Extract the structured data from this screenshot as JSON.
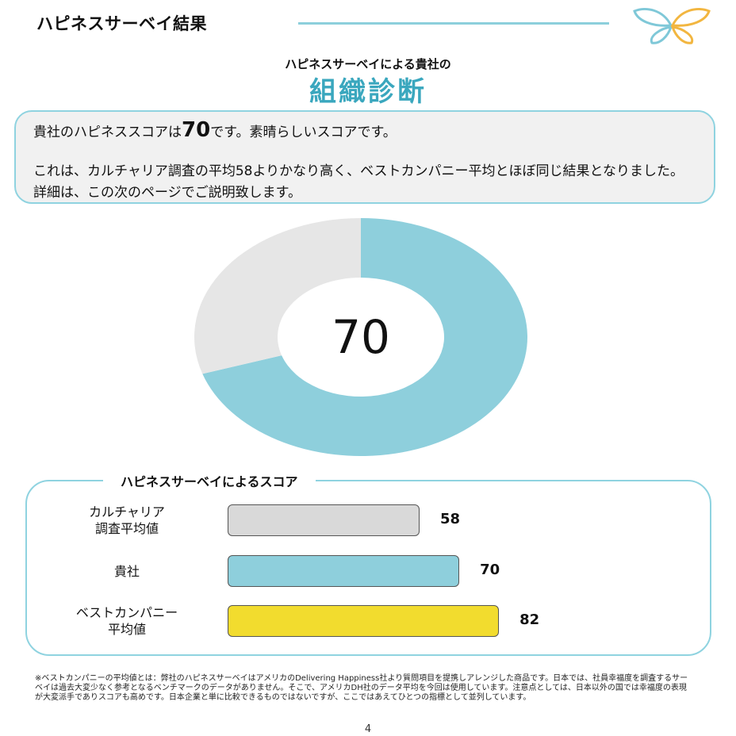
{
  "header": {
    "title": "ハピネスサーベイ結果"
  },
  "headings": {
    "sub": "ハピネスサーベイによる貴社の",
    "main": "組織診断"
  },
  "summary": {
    "line1_prefix": "貴社のハピネススコアは",
    "line1_score": "70",
    "line1_suffix": "です。素晴らしいスコアです。",
    "paragraph2": "これは、カルチャリア調査の平均58よりかなり高く、ベストカンパニー平均とほぼ同じ結果となりました。詳細は、この次のページでご説明致します。"
  },
  "chart_data": [
    {
      "type": "pie",
      "values": [
        70,
        30
      ],
      "colors": [
        "#8ecfdc",
        "#e6e6e6"
      ],
      "center_label": "70",
      "ylim": [
        0,
        100
      ]
    },
    {
      "type": "bar",
      "title": "ハピネスサーベイによるスコア",
      "categories": [
        [
          "カルチャリア",
          "調査平均値"
        ],
        [
          "貴社"
        ],
        [
          "ベストカンパニー",
          "平均値"
        ]
      ],
      "values": [
        58,
        70,
        82
      ],
      "colors": [
        "#d9d9d9",
        "#8ecfdc",
        "#f2dc2e"
      ]
    }
  ],
  "footnote": "※ベストカンパニーの平均値とは：弊社のハピネスサーベイはアメリカのDelivering Happiness社より質問項目を提携しアレンジした商品です。日本では、社員幸福度を調査するサーベイは過去大変少なく参考となるベンチマークのデータがありません。そこで、アメリカDH社のデータ平均を今回は使用しています。注意点としては、日本以外の国では幸福度の表現が大変派手でありスコアも高めです。日本企業と単に比較できるものではないですが、ここではあえてひとつの指標として並列しています。",
  "page_number": "4"
}
